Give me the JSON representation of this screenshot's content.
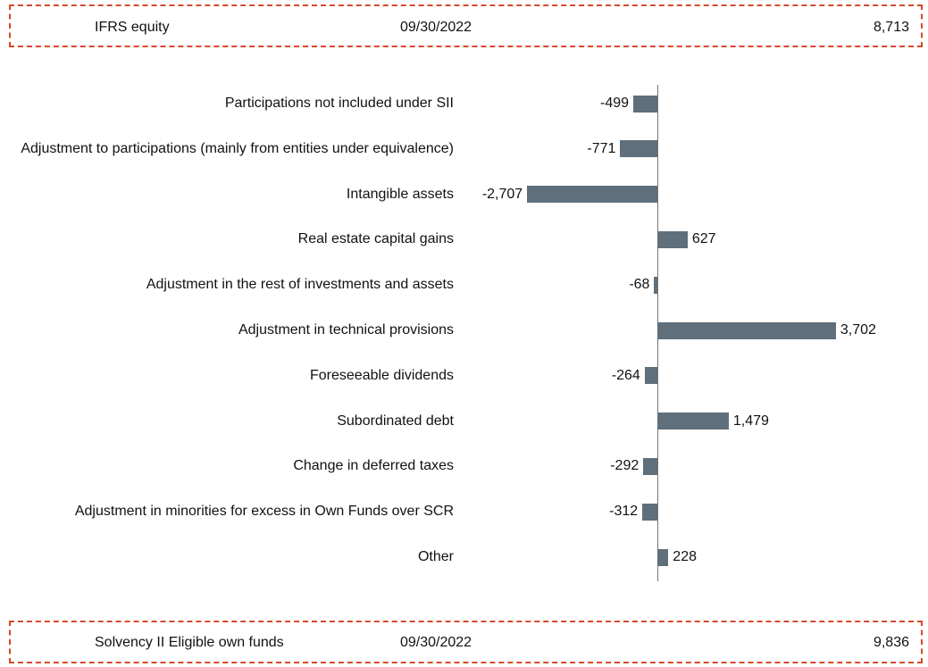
{
  "header": {
    "label": "IFRS equity",
    "date": "09/30/2022",
    "value": "8,713"
  },
  "chart_data": {
    "type": "hbar",
    "categories": [
      "Participations not included under SII",
      "Adjustment to participations (mainly from entities under equivalence)",
      "Intangible assets",
      "Real estate capital gains",
      "Adjustment in the rest of investments and assets",
      "Adjustment in technical provisions",
      "Foreseeable dividends",
      "Subordinated debt",
      "Change in deferred taxes",
      "Adjustment in minorities for excess in Own Funds over SCR",
      "Other"
    ],
    "values": [
      -499,
      -771,
      -2707,
      627,
      -68,
      3702,
      -264,
      1479,
      -292,
      -312,
      228
    ],
    "value_labels": [
      "-499",
      "-771",
      "-2,707",
      "627",
      "-68",
      "3,702",
      "-264",
      "1,479",
      "-292",
      "-312",
      "228"
    ],
    "color": "#5f6f7b",
    "xlim": [
      -3500,
      4500
    ]
  },
  "footer": {
    "label": "Solvency II Eligible own funds",
    "date": "09/30/2022",
    "value": "9,836"
  }
}
